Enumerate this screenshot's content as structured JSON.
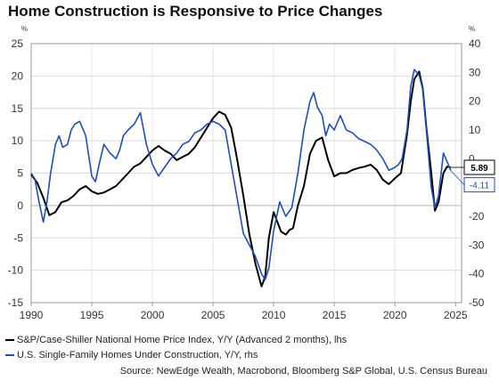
{
  "page_title": "Home Construction is Responsive to Price Changes",
  "source_note": "Source: NewEdge Wealth, Macrobond, Bloomberg S&P Global, U.S. Census Bureau",
  "chart_data": {
    "type": "line",
    "title": "Home Construction is Responsive to Price Changes",
    "grid": true,
    "legend_position": "bottom-left",
    "x_axis": {
      "range": [
        1990,
        2025.5
      ],
      "ticks": [
        1990,
        1995,
        2000,
        2005,
        2010,
        2015,
        2020,
        2025
      ]
    },
    "y_left": {
      "unit": "%",
      "range": [
        -15,
        25
      ],
      "ticks": [
        -15,
        -10,
        -5,
        0,
        5,
        10,
        15,
        20,
        25
      ]
    },
    "y_right": {
      "unit": "%",
      "range": [
        -50,
        40
      ],
      "ticks": [
        -50,
        -40,
        -30,
        -20,
        -10,
        0,
        10,
        20,
        30,
        40
      ]
    },
    "series": [
      {
        "name": "S&P/Case-Shiller National Home Price Index, Y/Y (Advanced 2 months), lhs",
        "axis": "left",
        "color": "#000000",
        "last_label": "5.89",
        "x": [
          1990.0,
          1990.5,
          1991.0,
          1991.5,
          1992.0,
          1992.5,
          1993.0,
          1993.5,
          1994.0,
          1994.5,
          1995.0,
          1995.5,
          1996.0,
          1996.5,
          1997.0,
          1997.5,
          1998.0,
          1998.5,
          1999.0,
          1999.5,
          2000.0,
          2000.5,
          2001.0,
          2001.5,
          2002.0,
          2002.5,
          2003.0,
          2003.5,
          2004.0,
          2004.5,
          2005.0,
          2005.5,
          2006.0,
          2006.5,
          2007.0,
          2007.5,
          2008.0,
          2008.5,
          2009.0,
          2009.3,
          2009.6,
          2010.0,
          2010.3,
          2010.6,
          2011.0,
          2011.3,
          2011.6,
          2012.0,
          2012.5,
          2013.0,
          2013.5,
          2014.0,
          2014.5,
          2015.0,
          2015.5,
          2016.0,
          2016.5,
          2017.0,
          2017.5,
          2018.0,
          2018.5,
          2019.0,
          2019.5,
          2020.0,
          2020.5,
          2021.0,
          2021.3,
          2021.6,
          2022.0,
          2022.3,
          2022.6,
          2023.0,
          2023.3,
          2023.6,
          2024.0,
          2024.3,
          2024.6
        ],
        "y": [
          4.8,
          3.5,
          1.2,
          -1.5,
          -1.0,
          0.5,
          0.8,
          1.5,
          2.5,
          3.0,
          2.2,
          1.8,
          2.0,
          2.5,
          3.0,
          4.0,
          5.0,
          6.0,
          6.5,
          7.5,
          8.5,
          9.2,
          8.5,
          8.0,
          7.0,
          7.5,
          8.0,
          9.0,
          10.5,
          12.0,
          13.5,
          14.5,
          14.0,
          12.0,
          7.0,
          1.5,
          -4.5,
          -9.0,
          -12.5,
          -11.0,
          -5.0,
          -1.0,
          -2.5,
          -4.0,
          -4.5,
          -3.8,
          -3.5,
          0.0,
          3.0,
          8.0,
          10.0,
          10.5,
          7.0,
          4.5,
          5.0,
          5.0,
          5.5,
          5.8,
          6.0,
          6.3,
          5.5,
          4.0,
          3.3,
          4.2,
          5.0,
          11.0,
          16.0,
          19.5,
          20.7,
          18.0,
          12.0,
          5.0,
          -0.8,
          0.5,
          5.0,
          6.0,
          5.89
        ]
      },
      {
        "name": "U.S. Single-Family Homes Under Construction, Y/Y, rhs",
        "axis": "right",
        "color": "#1f4eb4",
        "last_label": "-4.11",
        "x": [
          1990.0,
          1990.3,
          1990.6,
          1991.0,
          1991.3,
          1991.6,
          1992.0,
          1992.3,
          1992.6,
          1993.0,
          1993.3,
          1993.6,
          1994.0,
          1994.5,
          1995.0,
          1995.3,
          1995.6,
          1996.0,
          1996.5,
          1997.0,
          1997.3,
          1997.6,
          1998.0,
          1998.5,
          1999.0,
          1999.5,
          2000.0,
          2000.5,
          2001.0,
          2001.5,
          2002.0,
          2002.5,
          2003.0,
          2003.5,
          2004.0,
          2004.5,
          2005.0,
          2005.5,
          2006.0,
          2006.5,
          2007.0,
          2007.5,
          2008.0,
          2008.5,
          2009.0,
          2009.3,
          2009.6,
          2010.0,
          2010.5,
          2011.0,
          2011.5,
          2012.0,
          2012.5,
          2013.0,
          2013.3,
          2013.6,
          2014.0,
          2014.3,
          2014.6,
          2015.0,
          2015.5,
          2016.0,
          2016.5,
          2017.0,
          2017.5,
          2018.0,
          2018.5,
          2019.0,
          2019.5,
          2020.0,
          2020.3,
          2020.6,
          2021.0,
          2021.3,
          2021.6,
          2022.0,
          2022.3,
          2022.6,
          2023.0,
          2023.3,
          2023.6,
          2024.0,
          2024.3,
          2024.6
        ],
        "y": [
          -5.0,
          -7.0,
          -14.0,
          -22.0,
          -15.0,
          -5.0,
          5.0,
          8.0,
          4.0,
          5.0,
          10.0,
          12.0,
          13.0,
          8.0,
          -6.0,
          -8.0,
          -2.0,
          5.0,
          2.0,
          0.0,
          3.0,
          8.0,
          10.0,
          12.0,
          16.0,
          5.0,
          -2.0,
          -6.0,
          -3.0,
          0.0,
          2.0,
          5.0,
          6.0,
          9.0,
          10.0,
          12.0,
          13.0,
          12.0,
          10.0,
          -2.0,
          -14.0,
          -26.0,
          -30.0,
          -34.0,
          -40.0,
          -42.0,
          -38.0,
          -25.0,
          -15.0,
          -20.0,
          -17.0,
          -5.0,
          10.0,
          20.0,
          23.0,
          18.0,
          15.0,
          8.0,
          12.0,
          10.0,
          15.0,
          10.0,
          9.0,
          7.0,
          6.0,
          5.0,
          3.0,
          0.0,
          -4.0,
          -3.0,
          -2.0,
          0.0,
          10.0,
          25.0,
          31.0,
          29.0,
          24.0,
          10.0,
          -10.0,
          -17.0,
          -13.0,
          2.0,
          -1.0,
          -4.11
        ]
      }
    ],
    "annotations": [
      {
        "text": "5.89",
        "target_series": 0
      },
      {
        "text": "-4.11",
        "target_series": 1
      }
    ]
  }
}
